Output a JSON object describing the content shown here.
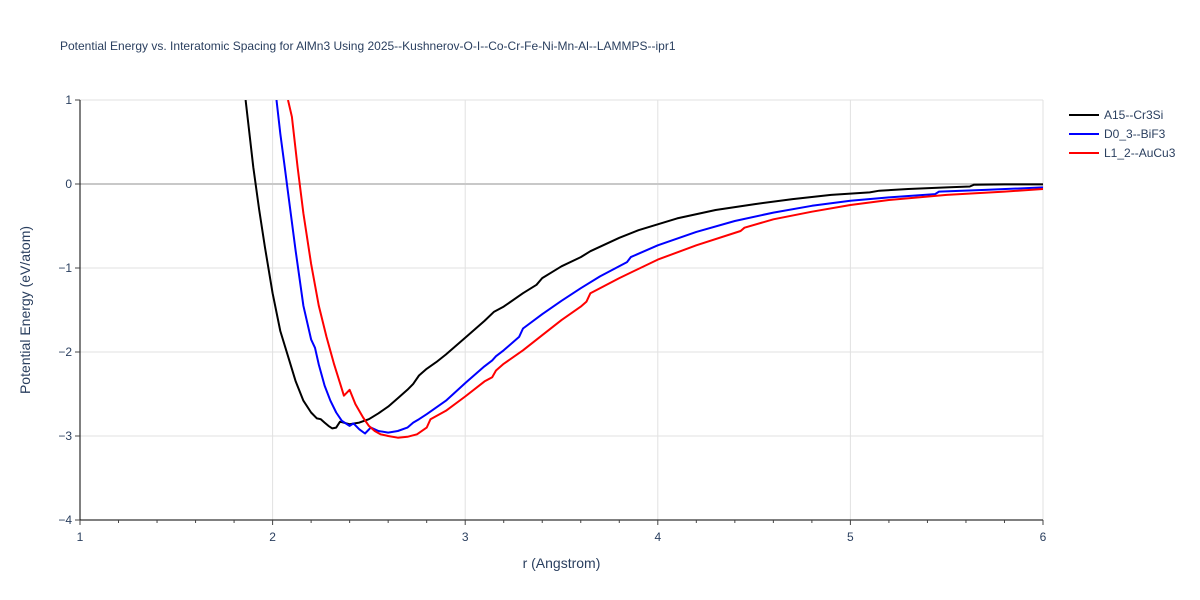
{
  "chart_data": {
    "type": "line",
    "title": "Potential Energy vs. Interatomic Spacing for AlMn3 Using 2025--Kushnerov-O-I--Co-Cr-Fe-Ni-Mn-Al--LAMMPS--ipr1",
    "xlabel": "r (Angstrom)",
    "ylabel": "Potential Energy (eV/atom)",
    "xlim": [
      1,
      6
    ],
    "ylim": [
      -4,
      1
    ],
    "xticks": [
      1,
      2,
      3,
      4,
      5,
      6
    ],
    "xtick_labels": [
      "1",
      "2",
      "3",
      "4",
      "5",
      "6"
    ],
    "yticks": [
      -4,
      -3,
      -2,
      -1,
      0,
      1
    ],
    "ytick_labels": [
      "−4",
      "−3",
      "−2",
      "−1",
      "0",
      "1"
    ],
    "grid": true,
    "legend_position": "top-right",
    "series": [
      {
        "name": "A15--Cr3Si",
        "color": "#000000",
        "x": [
          1.86,
          1.9,
          1.93,
          1.96,
          2.0,
          2.04,
          2.08,
          2.12,
          2.16,
          2.2,
          2.23,
          2.25,
          2.27,
          2.29,
          2.31,
          2.33,
          2.35,
          2.4,
          2.45,
          2.5,
          2.55,
          2.6,
          2.65,
          2.7,
          2.73,
          2.76,
          2.8,
          2.85,
          2.9,
          3.0,
          3.1,
          3.15,
          3.2,
          3.3,
          3.37,
          3.4,
          3.45,
          3.5,
          3.6,
          3.65,
          3.8,
          3.9,
          4.0,
          4.1,
          4.3,
          4.5,
          4.7,
          4.9,
          5.1,
          5.15,
          5.3,
          5.5,
          5.62,
          5.64,
          5.8,
          6.0
        ],
        "y": [
          1.0,
          0.2,
          -0.3,
          -0.75,
          -1.3,
          -1.75,
          -2.05,
          -2.35,
          -2.58,
          -2.72,
          -2.79,
          -2.8,
          -2.84,
          -2.88,
          -2.91,
          -2.9,
          -2.83,
          -2.86,
          -2.84,
          -2.8,
          -2.73,
          -2.65,
          -2.55,
          -2.45,
          -2.38,
          -2.28,
          -2.2,
          -2.12,
          -2.03,
          -1.83,
          -1.63,
          -1.52,
          -1.46,
          -1.3,
          -1.2,
          -1.12,
          -1.05,
          -0.98,
          -0.87,
          -0.8,
          -0.64,
          -0.55,
          -0.48,
          -0.41,
          -0.31,
          -0.24,
          -0.18,
          -0.13,
          -0.1,
          -0.08,
          -0.06,
          -0.04,
          -0.03,
          -0.01,
          -0.005,
          -0.005
        ]
      },
      {
        "name": "D0_3--BiF3",
        "color": "#0000ff",
        "x": [
          2.02,
          2.04,
          2.06,
          2.08,
          2.12,
          2.16,
          2.2,
          2.22,
          2.24,
          2.27,
          2.3,
          2.33,
          2.36,
          2.4,
          2.42,
          2.45,
          2.48,
          2.51,
          2.55,
          2.6,
          2.65,
          2.7,
          2.73,
          2.76,
          2.8,
          2.85,
          2.9,
          3.0,
          3.1,
          3.14,
          3.16,
          3.2,
          3.28,
          3.3,
          3.4,
          3.5,
          3.6,
          3.7,
          3.84,
          3.86,
          4.0,
          4.2,
          4.4,
          4.6,
          4.8,
          5.0,
          5.2,
          5.44,
          5.46,
          5.7,
          6.0
        ],
        "y": [
          1.0,
          0.6,
          0.25,
          -0.1,
          -0.8,
          -1.45,
          -1.85,
          -1.95,
          -2.15,
          -2.4,
          -2.58,
          -2.72,
          -2.82,
          -2.88,
          -2.85,
          -2.92,
          -2.97,
          -2.9,
          -2.94,
          -2.96,
          -2.94,
          -2.9,
          -2.84,
          -2.8,
          -2.74,
          -2.66,
          -2.58,
          -2.37,
          -2.17,
          -2.1,
          -2.05,
          -1.98,
          -1.82,
          -1.72,
          -1.55,
          -1.39,
          -1.24,
          -1.1,
          -0.93,
          -0.87,
          -0.73,
          -0.57,
          -0.44,
          -0.34,
          -0.26,
          -0.2,
          -0.16,
          -0.12,
          -0.09,
          -0.07,
          -0.04
        ]
      },
      {
        "name": "L1_2--AuCu3",
        "color": "#ff0000",
        "x": [
          2.08,
          2.1,
          2.13,
          2.16,
          2.2,
          2.24,
          2.28,
          2.32,
          2.35,
          2.37,
          2.4,
          2.43,
          2.47,
          2.5,
          2.53,
          2.56,
          2.6,
          2.65,
          2.7,
          2.75,
          2.8,
          2.82,
          2.9,
          3.0,
          3.1,
          3.14,
          3.16,
          3.2,
          3.3,
          3.4,
          3.5,
          3.6,
          3.63,
          3.65,
          3.8,
          4.0,
          4.2,
          4.43,
          4.45,
          4.6,
          4.8,
          5.0,
          5.2,
          5.5,
          5.8,
          6.0
        ],
        "y": [
          1.0,
          0.8,
          0.2,
          -0.35,
          -0.95,
          -1.45,
          -1.82,
          -2.15,
          -2.37,
          -2.52,
          -2.45,
          -2.62,
          -2.78,
          -2.88,
          -2.94,
          -2.98,
          -3.0,
          -3.02,
          -3.01,
          -2.98,
          -2.9,
          -2.8,
          -2.7,
          -2.53,
          -2.35,
          -2.3,
          -2.22,
          -2.14,
          -1.98,
          -1.8,
          -1.62,
          -1.46,
          -1.4,
          -1.3,
          -1.12,
          -0.9,
          -0.73,
          -0.56,
          -0.52,
          -0.42,
          -0.33,
          -0.25,
          -0.19,
          -0.13,
          -0.09,
          -0.06
        ]
      }
    ]
  }
}
